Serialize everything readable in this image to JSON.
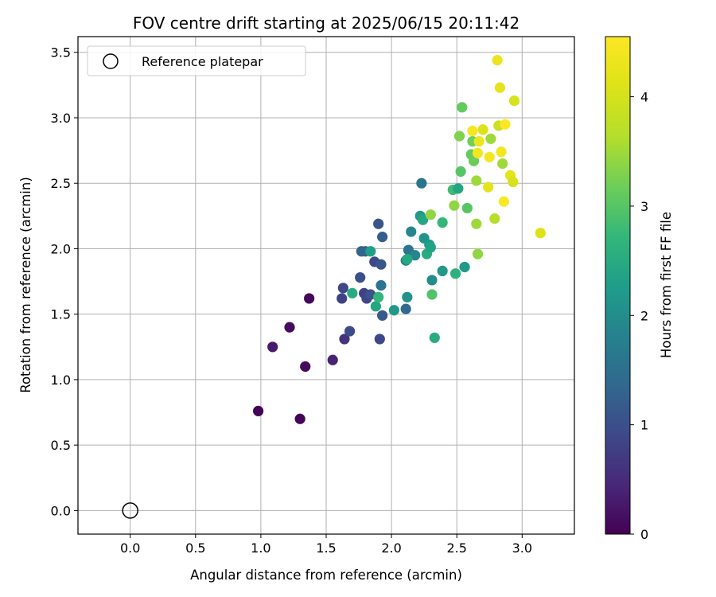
{
  "chart_data": {
    "type": "scatter",
    "title": "FOV centre drift starting at 2025/06/15 20:11:42",
    "xlabel": "Angular distance from reference (arcmin)",
    "ylabel": "Rotation from reference (arcmin)",
    "xlim": [
      -0.4,
      3.4
    ],
    "ylim": [
      -0.18,
      3.62
    ],
    "xticks": [
      "0.0",
      "0.5",
      "1.0",
      "1.5",
      "2.0",
      "2.5",
      "3.0"
    ],
    "yticks": [
      "0.0",
      "0.5",
      "1.0",
      "1.5",
      "2.0",
      "2.5",
      "3.0",
      "3.5"
    ],
    "grid": true,
    "legend": {
      "placement": "upper-left",
      "entries": [
        "Reference platepar"
      ]
    },
    "reference_point": {
      "x": 0.0,
      "y": 0.0
    },
    "colorbar": {
      "label": "Hours from first FF file",
      "colormap": "viridis",
      "range": [
        0,
        4.55
      ],
      "ticks": [
        "0",
        "1",
        "2",
        "3",
        "4"
      ]
    },
    "points": [
      {
        "x": 0.98,
        "y": 0.76,
        "c": 0.02
      },
      {
        "x": 1.3,
        "y": 0.7,
        "c": 0.05
      },
      {
        "x": 1.34,
        "y": 1.1,
        "c": 0.1
      },
      {
        "x": 1.37,
        "y": 1.62,
        "c": 0.08
      },
      {
        "x": 1.22,
        "y": 1.4,
        "c": 0.12
      },
      {
        "x": 1.09,
        "y": 1.25,
        "c": 0.3
      },
      {
        "x": 1.55,
        "y": 1.15,
        "c": 0.4
      },
      {
        "x": 1.64,
        "y": 1.31,
        "c": 0.6
      },
      {
        "x": 1.62,
        "y": 1.62,
        "c": 0.8
      },
      {
        "x": 1.63,
        "y": 1.7,
        "c": 0.9
      },
      {
        "x": 1.68,
        "y": 1.37,
        "c": 0.95
      },
      {
        "x": 1.76,
        "y": 1.78,
        "c": 1.0
      },
      {
        "x": 1.79,
        "y": 1.66,
        "c": 0.8
      },
      {
        "x": 1.81,
        "y": 1.62,
        "c": 0.85
      },
      {
        "x": 1.84,
        "y": 1.65,
        "c": 1.05
      },
      {
        "x": 1.87,
        "y": 1.9,
        "c": 0.9
      },
      {
        "x": 1.91,
        "y": 1.31,
        "c": 0.9
      },
      {
        "x": 1.9,
        "y": 2.19,
        "c": 1.1
      },
      {
        "x": 1.92,
        "y": 1.88,
        "c": 1.1
      },
      {
        "x": 1.93,
        "y": 2.09,
        "c": 1.2
      },
      {
        "x": 1.93,
        "y": 1.49,
        "c": 1.15
      },
      {
        "x": 1.77,
        "y": 1.98,
        "c": 1.3
      },
      {
        "x": 1.8,
        "y": 1.98,
        "c": 1.35
      },
      {
        "x": 1.92,
        "y": 1.72,
        "c": 1.6
      },
      {
        "x": 1.84,
        "y": 1.98,
        "c": 2.3
      },
      {
        "x": 1.88,
        "y": 1.56,
        "c": 2.4
      },
      {
        "x": 1.9,
        "y": 1.63,
        "c": 2.7
      },
      {
        "x": 1.7,
        "y": 1.66,
        "c": 2.5
      },
      {
        "x": 2.02,
        "y": 1.53,
        "c": 2.2
      },
      {
        "x": 2.11,
        "y": 1.54,
        "c": 1.4
      },
      {
        "x": 2.12,
        "y": 1.63,
        "c": 2.1
      },
      {
        "x": 2.11,
        "y": 1.91,
        "c": 1.8
      },
      {
        "x": 2.13,
        "y": 1.99,
        "c": 1.6
      },
      {
        "x": 2.15,
        "y": 2.13,
        "c": 1.9
      },
      {
        "x": 2.18,
        "y": 1.95,
        "c": 1.9
      },
      {
        "x": 2.12,
        "y": 1.92,
        "c": 2.45
      },
      {
        "x": 2.22,
        "y": 2.25,
        "c": 2.2
      },
      {
        "x": 2.23,
        "y": 2.5,
        "c": 1.6
      },
      {
        "x": 2.24,
        "y": 2.22,
        "c": 2.4
      },
      {
        "x": 2.25,
        "y": 2.08,
        "c": 2.1
      },
      {
        "x": 2.27,
        "y": 1.96,
        "c": 2.5
      },
      {
        "x": 2.29,
        "y": 2.03,
        "c": 2.2
      },
      {
        "x": 2.3,
        "y": 2.01,
        "c": 2.35
      },
      {
        "x": 2.31,
        "y": 1.76,
        "c": 2.0
      },
      {
        "x": 2.31,
        "y": 1.65,
        "c": 2.95
      },
      {
        "x": 2.3,
        "y": 2.26,
        "c": 3.4
      },
      {
        "x": 2.33,
        "y": 1.32,
        "c": 2.5
      },
      {
        "x": 2.39,
        "y": 1.83,
        "c": 2.2
      },
      {
        "x": 2.39,
        "y": 2.2,
        "c": 2.7
      },
      {
        "x": 2.47,
        "y": 2.45,
        "c": 2.8
      },
      {
        "x": 2.48,
        "y": 2.33,
        "c": 3.4
      },
      {
        "x": 2.49,
        "y": 1.81,
        "c": 2.6
      },
      {
        "x": 2.51,
        "y": 2.46,
        "c": 2.4
      },
      {
        "x": 2.52,
        "y": 2.86,
        "c": 3.3
      },
      {
        "x": 2.53,
        "y": 2.59,
        "c": 3.0
      },
      {
        "x": 2.54,
        "y": 3.08,
        "c": 3.1
      },
      {
        "x": 2.56,
        "y": 1.86,
        "c": 2.2
      },
      {
        "x": 2.58,
        "y": 2.31,
        "c": 3.0
      },
      {
        "x": 2.61,
        "y": 2.72,
        "c": 3.1
      },
      {
        "x": 2.62,
        "y": 2.82,
        "c": 3.2
      },
      {
        "x": 2.62,
        "y": 2.9,
        "c": 4.45
      },
      {
        "x": 2.63,
        "y": 2.67,
        "c": 3.15
      },
      {
        "x": 2.65,
        "y": 2.52,
        "c": 3.5
      },
      {
        "x": 2.65,
        "y": 2.19,
        "c": 3.5
      },
      {
        "x": 2.66,
        "y": 1.96,
        "c": 3.4
      },
      {
        "x": 2.66,
        "y": 2.73,
        "c": 4.4
      },
      {
        "x": 2.67,
        "y": 2.82,
        "c": 4.3
      },
      {
        "x": 2.7,
        "y": 2.91,
        "c": 4.1
      },
      {
        "x": 2.74,
        "y": 2.47,
        "c": 4.2
      },
      {
        "x": 2.75,
        "y": 2.7,
        "c": 4.45
      },
      {
        "x": 2.76,
        "y": 2.84,
        "c": 3.5
      },
      {
        "x": 2.79,
        "y": 2.23,
        "c": 3.65
      },
      {
        "x": 2.81,
        "y": 3.44,
        "c": 4.3
      },
      {
        "x": 2.82,
        "y": 2.94,
        "c": 3.9
      },
      {
        "x": 2.83,
        "y": 3.23,
        "c": 4.2
      },
      {
        "x": 2.84,
        "y": 2.74,
        "c": 4.4
      },
      {
        "x": 2.85,
        "y": 2.65,
        "c": 3.5
      },
      {
        "x": 2.86,
        "y": 2.36,
        "c": 4.5
      },
      {
        "x": 2.87,
        "y": 2.95,
        "c": 4.55
      },
      {
        "x": 2.91,
        "y": 2.56,
        "c": 4.2
      },
      {
        "x": 2.93,
        "y": 2.51,
        "c": 4.0
      },
      {
        "x": 2.94,
        "y": 3.13,
        "c": 4.0
      },
      {
        "x": 3.14,
        "y": 2.12,
        "c": 4.1
      }
    ]
  }
}
